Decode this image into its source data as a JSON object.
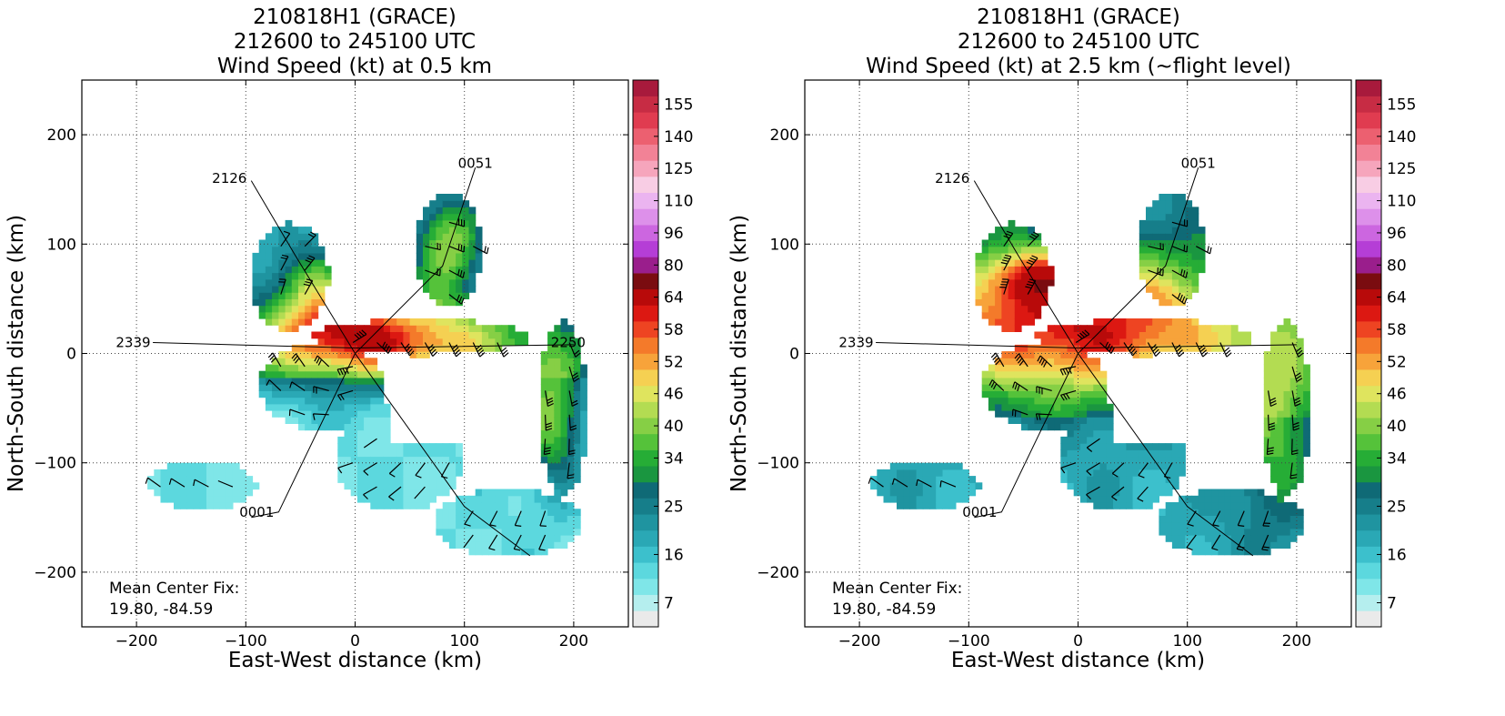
{
  "chart_data": [
    {
      "type": "heatmap",
      "title": [
        "210818H1 (GRACE)",
        "212600 to 245100 UTC",
        "Wind Speed (kt) at 0.5 km"
      ],
      "xlabel": "East-West distance (km)",
      "ylabel": "North-South distance (km)",
      "xlim": [
        -250,
        250
      ],
      "ylim": [
        -250,
        250
      ],
      "xticks": [
        -200,
        -100,
        0,
        100,
        200
      ],
      "yticks": [
        -200,
        -100,
        0,
        100,
        200
      ],
      "grid": true,
      "annotation": [
        "Mean Center Fix:",
        "19.80, -84.59"
      ],
      "flight_track_labels": [
        {
          "text": "2126",
          "x": -115,
          "y": 160
        },
        {
          "text": "0051",
          "x": 110,
          "y": 174
        },
        {
          "text": "2339",
          "x": -203,
          "y": 10
        },
        {
          "text": "2250",
          "x": 195,
          "y": 10
        },
        {
          "text": "0001",
          "x": -90,
          "y": -145
        }
      ],
      "flight_track": [
        [
          -95,
          158
        ],
        [
          -55,
          90
        ],
        [
          0,
          0
        ],
        [
          -70,
          -145
        ],
        [
          -95,
          -150
        ]
      ],
      "flight_track_2": [
        [
          -185,
          10
        ],
        [
          0,
          5
        ],
        [
          200,
          8
        ]
      ],
      "flight_track_3": [
        [
          110,
          170
        ],
        [
          80,
          80
        ],
        [
          0,
          0
        ],
        [
          100,
          -140
        ],
        [
          160,
          -185
        ]
      ],
      "colorbar": {
        "ticks": [
          7,
          16,
          25,
          34,
          40,
          46,
          52,
          58,
          64,
          80,
          96,
          110,
          125,
          140,
          155
        ],
        "levels": [
          4,
          7,
          10,
          13,
          16,
          19,
          22,
          25,
          28,
          31,
          34,
          37,
          40,
          43,
          46,
          49,
          52,
          55,
          58,
          61,
          64,
          72,
          80,
          88,
          96,
          103,
          110,
          118,
          125,
          133,
          140,
          148,
          155,
          162
        ],
        "colors": [
          "#eaeaea",
          "#b5eeee",
          "#7fe6e8",
          "#5cd8de",
          "#3cc0cc",
          "#2aa8b5",
          "#1f94a0",
          "#167e8a",
          "#0f6a76",
          "#1a9640",
          "#26ad36",
          "#55c23a",
          "#86cf45",
          "#b3dc52",
          "#dfe45e",
          "#f5d052",
          "#f7a33a",
          "#f47a2a",
          "#ee4422",
          "#dc1812",
          "#b80a0a",
          "#7a0c10",
          "#9a1e8c",
          "#b53ed6",
          "#cc66e0",
          "#dd90ea",
          "#ebb4f0",
          "#f8cde4",
          "#f6a5bc",
          "#f28296",
          "#ec6070",
          "#e03c50",
          "#c72c44",
          "#a81a3c"
        ]
      }
    },
    {
      "type": "heatmap",
      "title": [
        "210818H1 (GRACE)",
        "212600 to 245100 UTC",
        "Wind Speed (kt) at 2.5 km (~flight level)"
      ],
      "xlabel": "East-West distance (km)",
      "ylabel": "North-South distance (km)",
      "xlim": [
        -250,
        250
      ],
      "ylim": [
        -250,
        250
      ],
      "xticks": [
        -200,
        -100,
        0,
        100,
        200
      ],
      "yticks": [
        -200,
        -100,
        0,
        100,
        200
      ],
      "grid": true,
      "annotation": [
        "Mean Center Fix:",
        "19.80, -84.59"
      ],
      "flight_track_labels": [
        {
          "text": "2126",
          "x": -115,
          "y": 160
        },
        {
          "text": "0051",
          "x": 110,
          "y": 174
        },
        {
          "text": "2339",
          "x": -203,
          "y": 10
        },
        {
          "text": "0001",
          "x": -90,
          "y": -145
        }
      ],
      "flight_track": [
        [
          -95,
          158
        ],
        [
          -55,
          90
        ],
        [
          0,
          0
        ],
        [
          -70,
          -145
        ],
        [
          -95,
          -150
        ]
      ],
      "flight_track_2": [
        [
          -185,
          10
        ],
        [
          0,
          5
        ],
        [
          200,
          8
        ]
      ],
      "flight_track_3": [
        [
          110,
          170
        ],
        [
          80,
          80
        ],
        [
          0,
          0
        ],
        [
          100,
          -140
        ],
        [
          160,
          -185
        ]
      ],
      "colorbar": {
        "ticks": [
          7,
          16,
          25,
          34,
          40,
          46,
          52,
          58,
          64,
          80,
          96,
          110,
          125,
          140,
          155
        ],
        "levels": [
          4,
          7,
          10,
          13,
          16,
          19,
          22,
          25,
          28,
          31,
          34,
          37,
          40,
          43,
          46,
          49,
          52,
          55,
          58,
          61,
          64,
          72,
          80,
          88,
          96,
          103,
          110,
          118,
          125,
          133,
          140,
          148,
          155,
          162
        ],
        "colors": [
          "#eaeaea",
          "#b5eeee",
          "#7fe6e8",
          "#5cd8de",
          "#3cc0cc",
          "#2aa8b5",
          "#1f94a0",
          "#167e8a",
          "#0f6a76",
          "#1a9640",
          "#26ad36",
          "#55c23a",
          "#86cf45",
          "#b3dc52",
          "#dfe45e",
          "#f5d052",
          "#f7a33a",
          "#f47a2a",
          "#ee4422",
          "#dc1812",
          "#b80a0a",
          "#7a0c10",
          "#9a1e8c",
          "#b53ed6",
          "#cc66e0",
          "#dd90ea",
          "#ebb4f0",
          "#f8cde4",
          "#f6a5bc",
          "#f28296",
          "#ec6070",
          "#e03c50",
          "#c72c44",
          "#a81a3c"
        ]
      }
    }
  ]
}
